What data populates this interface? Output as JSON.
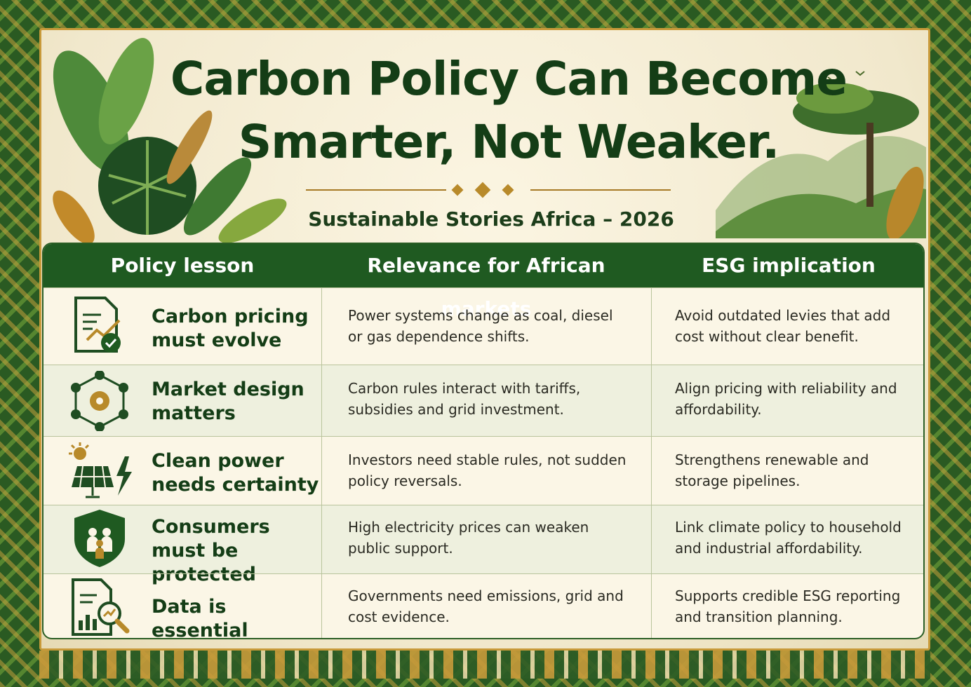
{
  "title_line1": "Carbon Policy Can Become",
  "title_line2": "Smarter, Not Weaker.",
  "subtitle": "Sustainable Stories Africa – 2026",
  "colors": {
    "primary_green": "#1f5a21",
    "gold": "#b88a2a",
    "cream": "#fbf6e6"
  },
  "table": {
    "headers": [
      "Policy lesson",
      "Relevance for African markets",
      "ESG implication"
    ],
    "rows": [
      {
        "icon": "document-chart-check-icon",
        "lesson": "Carbon pricing must evolve",
        "relevance": "Power systems change as coal, diesel or gas dependence shifts.",
        "esg": "Avoid outdated levies that add cost without clear benefit."
      },
      {
        "icon": "gear-network-icon",
        "lesson": "Market design matters",
        "relevance": "Carbon rules interact with tariffs, subsidies and grid investment.",
        "esg": "Align pricing with reliability and affordability."
      },
      {
        "icon": "solar-panel-lightning-icon",
        "lesson": "Clean power needs certainty",
        "relevance": "Investors need stable rules, not sudden policy reversals.",
        "esg": "Strengthens renewable and storage pipelines."
      },
      {
        "icon": "shield-family-icon",
        "lesson": "Consumers must be protected",
        "relevance": "High electricity prices can weaken public support.",
        "esg": "Link climate policy to household and industrial affordability."
      },
      {
        "icon": "document-magnifier-icon",
        "lesson": "Data is essential",
        "relevance": "Governments need emissions, grid and cost evidence.",
        "esg": "Supports credible ESG reporting and transition planning."
      }
    ]
  }
}
